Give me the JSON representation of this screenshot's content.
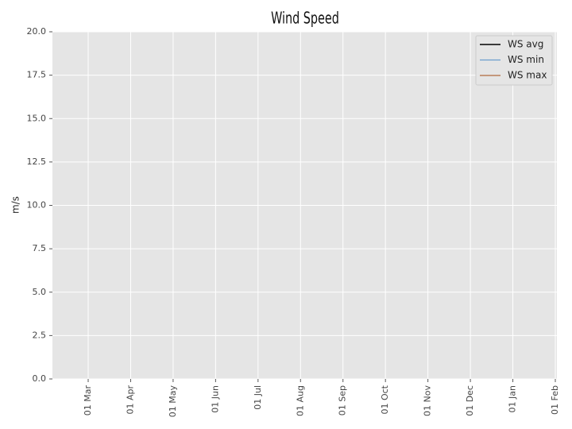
{
  "chart_data": {
    "type": "line",
    "title": "Wind Speed",
    "ylabel": "m/s",
    "xticks": [
      "01 Mar",
      "01 Apr",
      "01 May",
      "01 Jun",
      "01 Jul",
      "01 Aug",
      "01 Sep",
      "01 Oct",
      "01 Nov",
      "01 Dec",
      "01 Jan",
      "01 Feb"
    ],
    "x": [],
    "series": [
      {
        "name": "WS avg",
        "color": "#222222",
        "values": []
      },
      {
        "name": "WS min",
        "color": "#6a9ccc",
        "values": []
      },
      {
        "name": "WS max",
        "color": "#b06a3c",
        "values": []
      }
    ],
    "ylim": [
      0,
      20
    ],
    "yticks": [
      {
        "value": 0,
        "label": "0.0"
      },
      2.5,
      {
        "value": 5,
        "label": "5.0"
      },
      7.5,
      {
        "value": 10,
        "label": "10.0"
      },
      12.5,
      {
        "value": 15,
        "label": "15.0"
      },
      17.5,
      {
        "value": 20,
        "label": "20.0"
      }
    ],
    "grid": true,
    "legend": "upper right"
  }
}
